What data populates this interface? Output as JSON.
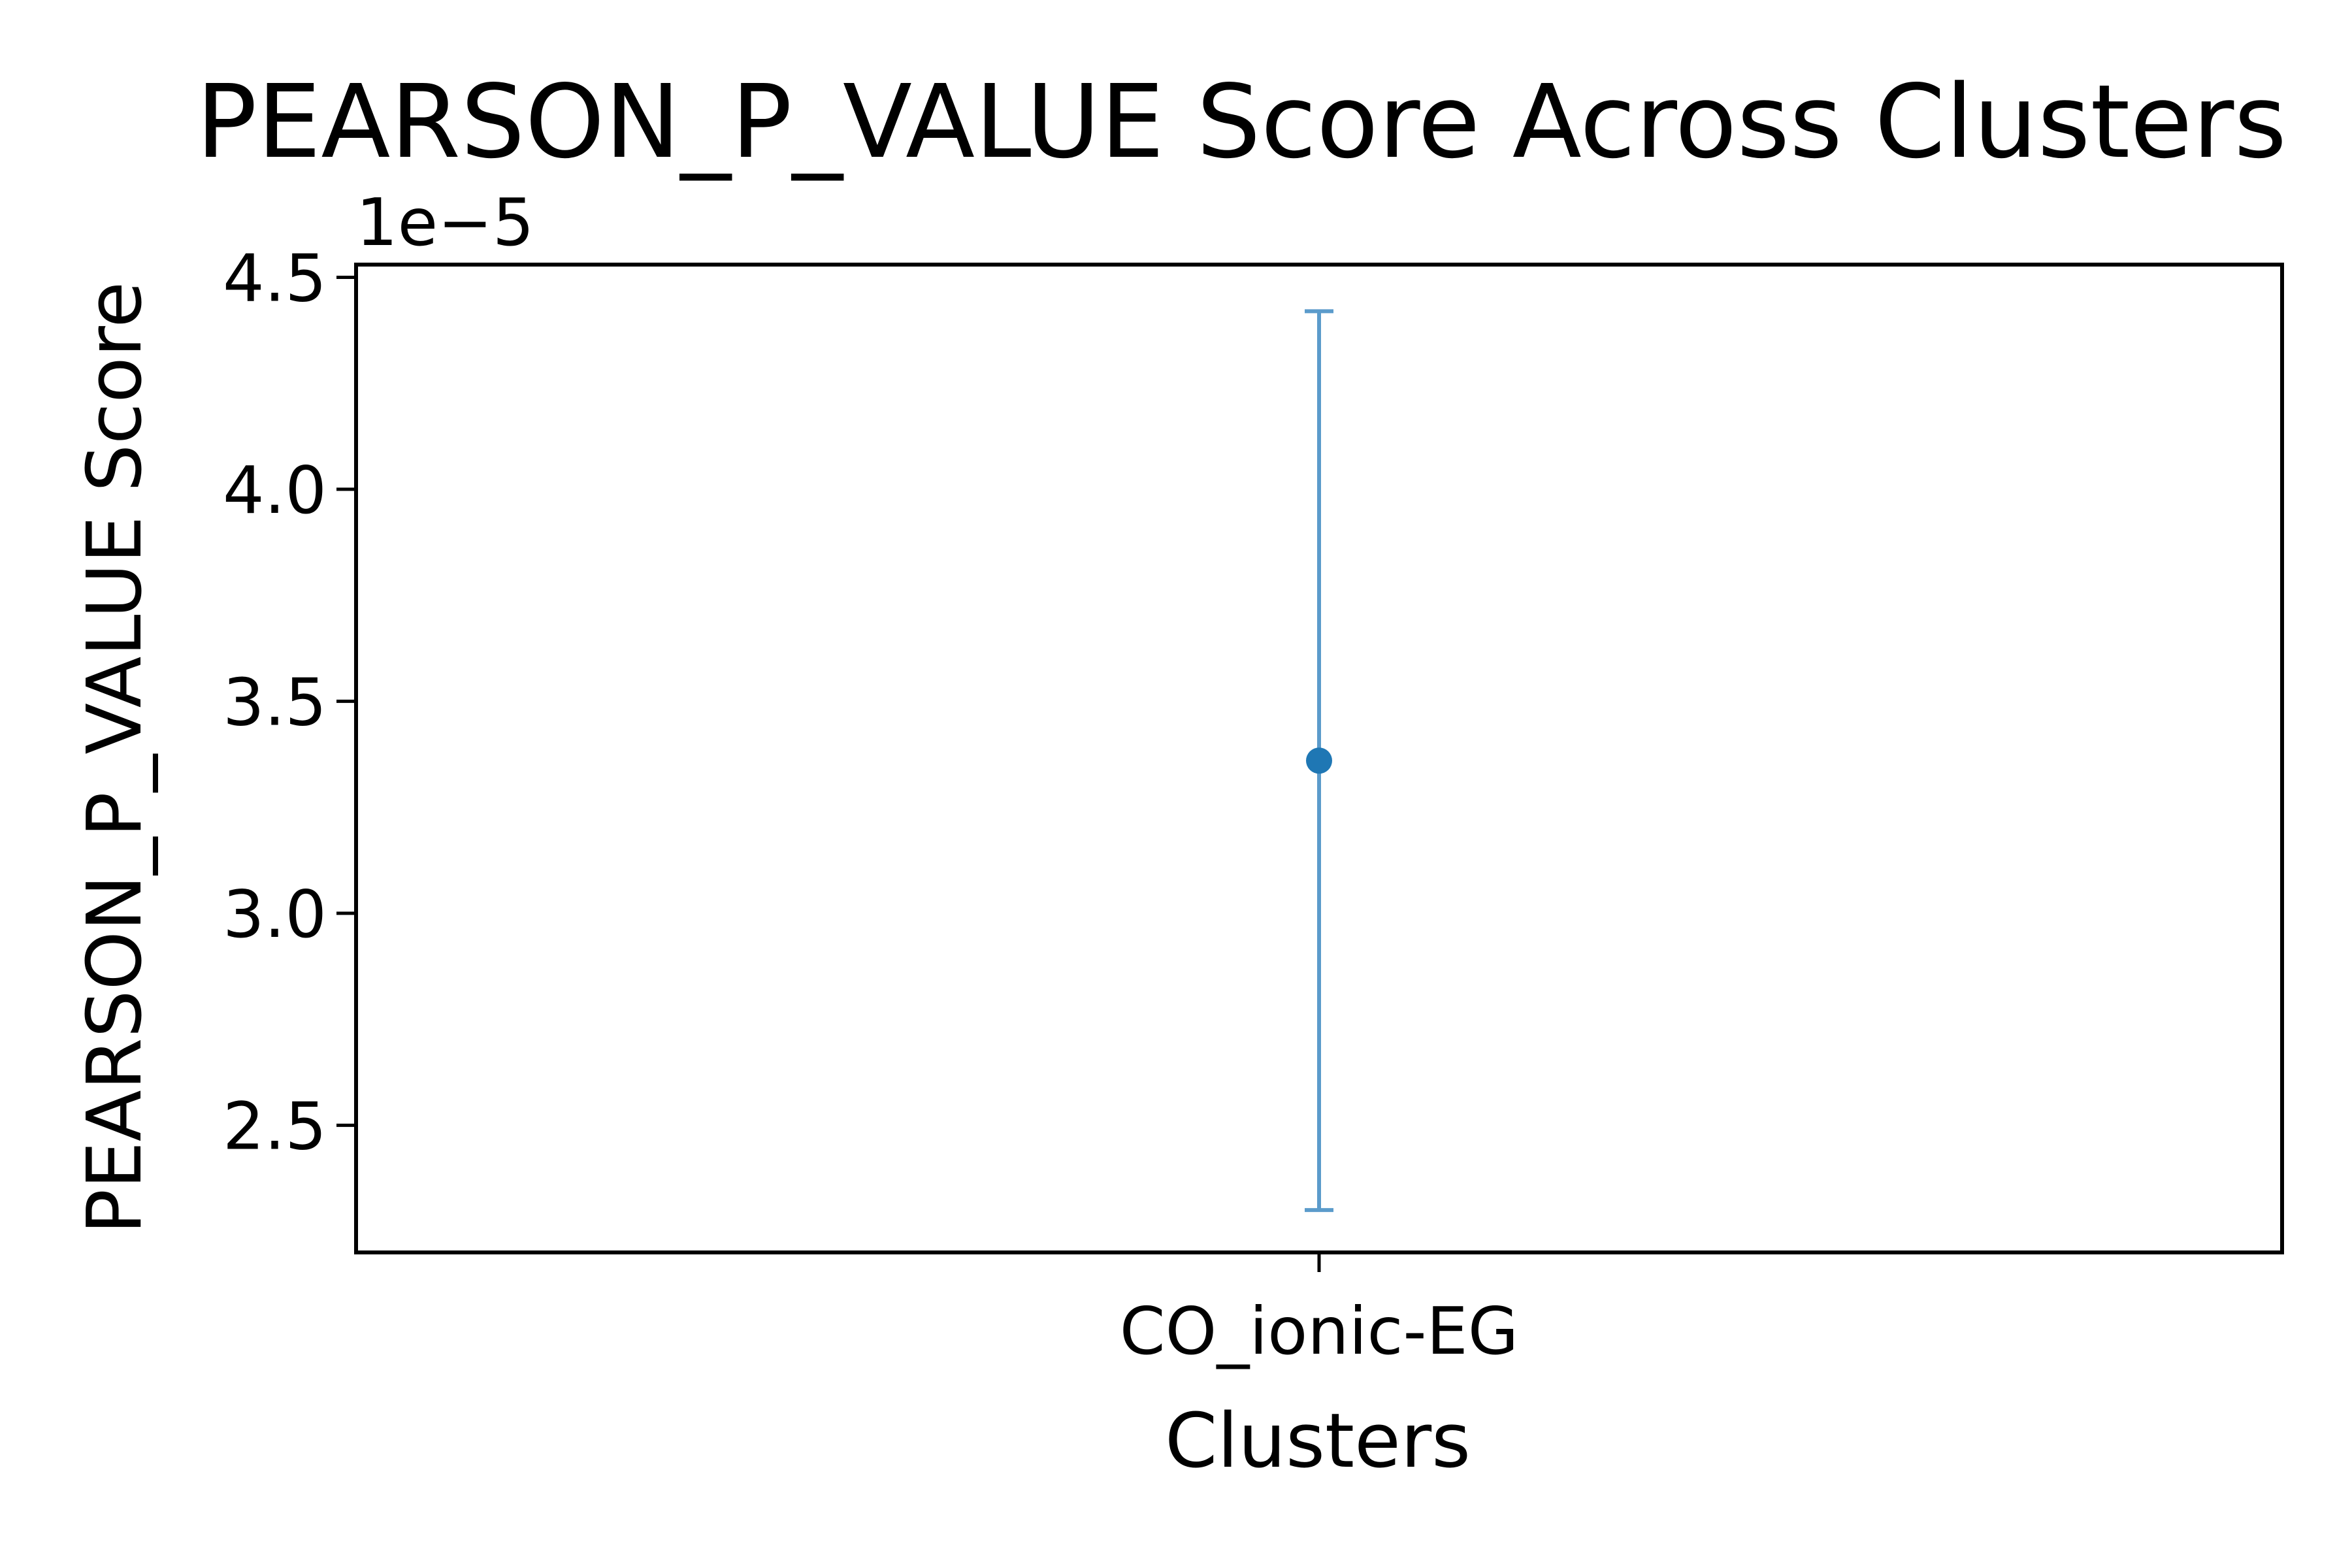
{
  "chart_data": {
    "type": "errorbar",
    "title": "PEARSON_P_VALUE Score Across Clusters",
    "xlabel": "Clusters",
    "ylabel": "PEARSON_P_VALUE Score",
    "y_offset_label": "1e−5",
    "y_scale_factor": 1e-05,
    "categories": [
      "CO_ionic-EG"
    ],
    "points": [
      {
        "category": "CO_ionic-EG",
        "mean": 3.36e-05,
        "lower": 2.3e-05,
        "upper": 4.42e-05
      }
    ],
    "ylim": [
      2.2e-05,
      4.53e-05
    ],
    "yticks": [
      2.5e-05,
      3e-05,
      3.5e-05,
      4e-05,
      4.5e-05
    ],
    "ytick_labels": [
      "2.5",
      "3.0",
      "3.5",
      "4.0",
      "4.5"
    ],
    "grid": false,
    "colors": {
      "point": "#1f77b4",
      "errorbar": "#5b9bcb",
      "axes": "#000000"
    }
  }
}
